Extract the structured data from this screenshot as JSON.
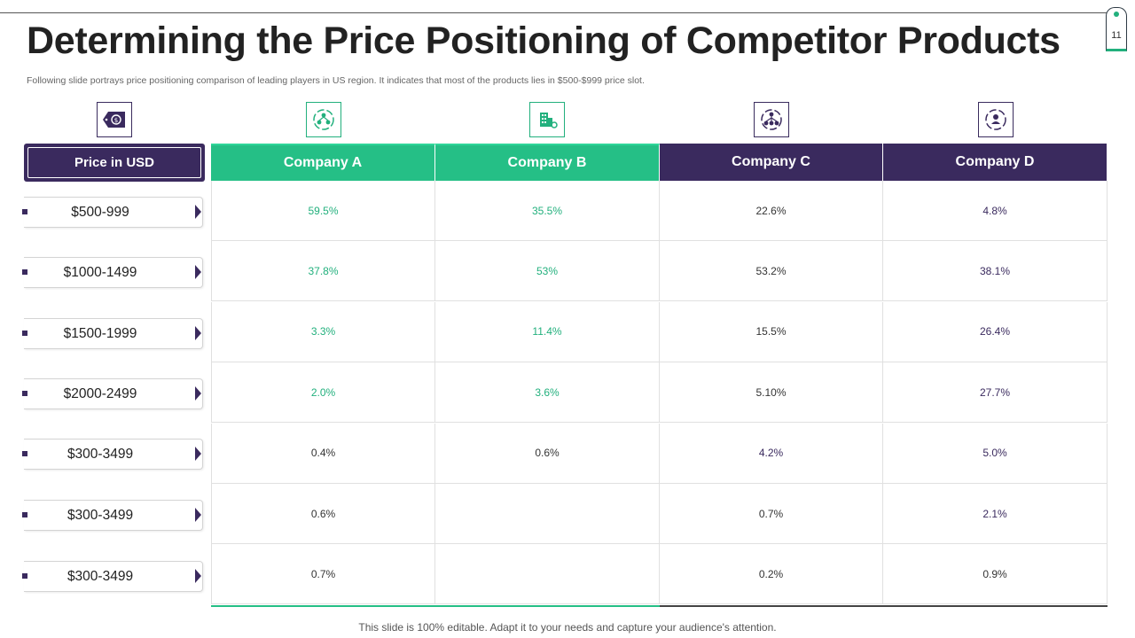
{
  "page": {
    "number": "11",
    "title": "Determining the Price Positioning of Competitor Products",
    "subtitle": "Following slide portrays price positioning comparison of leading players in US region. It indicates that most of the products lies in $500-$999 price slot.",
    "footer": "This slide is 100% editable. Adapt it to your needs and capture your audience's attention."
  },
  "colors": {
    "purple": "#3a2a5e",
    "green": "#25bf86",
    "green_text": "#22b07d",
    "dark_text": "#333333"
  },
  "icons": [
    "price-tag-icon",
    "team-network-icon",
    "buildings-gear-icon",
    "org-network-icon",
    "user-network-icon"
  ],
  "left_header": "Price in USD",
  "companies": [
    {
      "name": "Company A",
      "theme": "green"
    },
    {
      "name": "Company B",
      "theme": "green"
    },
    {
      "name": "Company C",
      "theme": "purple"
    },
    {
      "name": "Company D",
      "theme": "purple"
    }
  ],
  "rows": [
    {
      "price": "$500-999",
      "values": [
        "59.5%",
        "35.5%",
        "22.6%",
        "4.8%"
      ]
    },
    {
      "price": "$1000-1499",
      "values": [
        "37.8%",
        "53%",
        "53.2%",
        "38.1%"
      ]
    },
    {
      "price": "$1500-1999",
      "values": [
        "3.3%",
        "11.4%",
        "15.5%",
        "26.4%"
      ]
    },
    {
      "price": "$2000-2499",
      "values": [
        "2.0%",
        "3.6%",
        "5.10%",
        "27.7%"
      ]
    },
    {
      "price": "$300-3499",
      "values": [
        "0.4%",
        "0.6%",
        "4.2%",
        "5.0%"
      ]
    },
    {
      "price": "$300-3499",
      "values": [
        "0.6%",
        "",
        "0.7%",
        "2.1%"
      ]
    },
    {
      "price": "$300-3499",
      "values": [
        "0.7%",
        "",
        "0.2%",
        "0.9%"
      ]
    }
  ],
  "value_colors": [
    [
      "#22b07d",
      "#22b07d",
      "#333333",
      "#3a2a5e"
    ],
    [
      "#22b07d",
      "#22b07d",
      "#333333",
      "#3a2a5e"
    ],
    [
      "#22b07d",
      "#22b07d",
      "#333333",
      "#3a2a5e"
    ],
    [
      "#22b07d",
      "#22b07d",
      "#333333",
      "#3a2a5e"
    ],
    [
      "#333333",
      "#333333",
      "#3a2a5e",
      "#3a2a5e"
    ],
    [
      "#333333",
      "#333333",
      "#333333",
      "#3a2a5e"
    ],
    [
      "#333333",
      "#333333",
      "#333333",
      "#333333"
    ]
  ]
}
